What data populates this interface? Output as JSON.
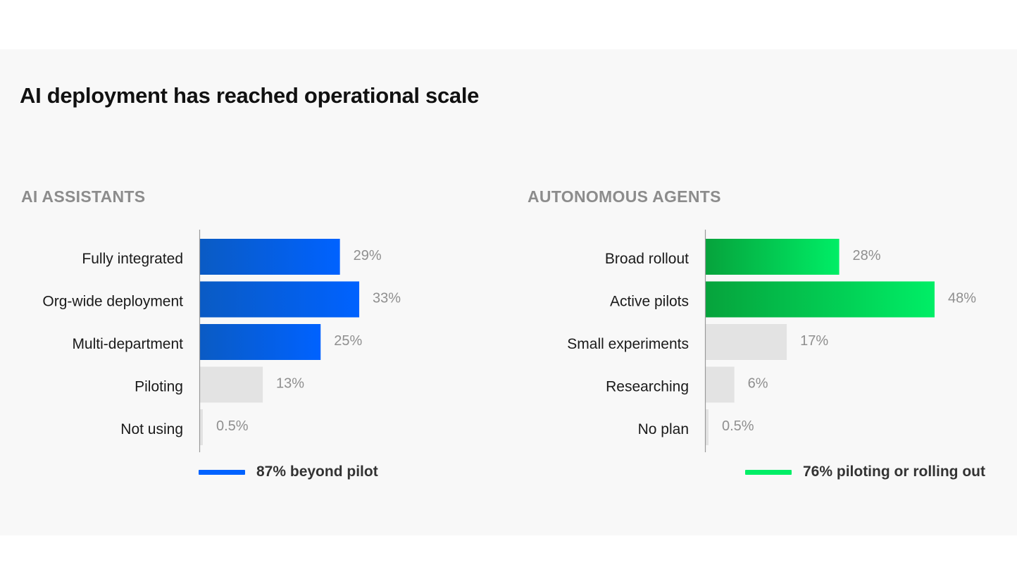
{
  "title": "AI deployment has reached operational scale",
  "colors": {
    "blue_start": "#0a5bc4",
    "blue_end": "#0062ff",
    "green_start": "#06a33c",
    "green_end": "#00ee66",
    "muted_bar": "#e3e3e3"
  },
  "chart_data": [
    {
      "type": "bar",
      "orientation": "horizontal",
      "title": "AI ASSISTANTS",
      "categories": [
        "Fully integrated",
        "Org-wide deployment",
        "Multi-department",
        "Piloting",
        "Not using"
      ],
      "values": [
        29,
        33,
        25,
        13,
        0.5
      ],
      "value_labels": [
        "29%",
        "33%",
        "25%",
        "13%",
        "0.5%"
      ],
      "highlighted": [
        true,
        true,
        true,
        false,
        false
      ],
      "highlight_color": "blue",
      "legend": "87% beyond pilot",
      "legend_color": "#0062ff"
    },
    {
      "type": "bar",
      "orientation": "horizontal",
      "title": "AUTONOMOUS AGENTS",
      "categories": [
        "Broad rollout",
        "Active pilots",
        "Small experiments",
        "Researching",
        "No plan"
      ],
      "values": [
        28,
        48,
        17,
        6,
        0.5
      ],
      "value_labels": [
        "28%",
        "48%",
        "17%",
        "6%",
        "0.5%"
      ],
      "highlighted": [
        true,
        true,
        false,
        false,
        false
      ],
      "highlight_color": "green",
      "legend": "76% piloting or rolling out",
      "legend_color": "#00ee66"
    }
  ]
}
